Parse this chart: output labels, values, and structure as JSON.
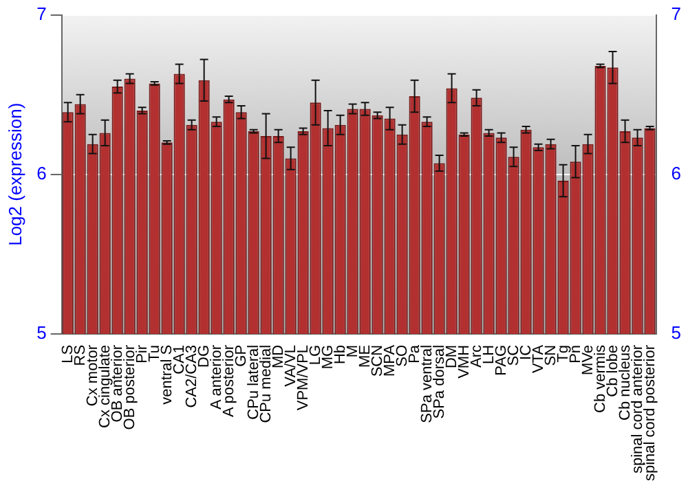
{
  "chart_data": {
    "type": "bar",
    "ylabel": "Log2 (expression)",
    "categories": [
      "LS",
      "RS",
      "Cx motor",
      "Cx cingulate",
      "OB anterior",
      "OB posterior",
      "Pir",
      "Tu",
      "ventral S",
      "CA1",
      "CA2/CA3",
      "DG",
      "A anterior",
      "A posterior",
      "GP",
      "CPu lateral",
      "CPu medial",
      "MD",
      "VA/VL",
      "VPM/VPL",
      "LG",
      "MG",
      "Hb",
      "M",
      "ME",
      "SCN",
      "MPA",
      "SO",
      "Pa",
      "SPa ventral",
      "SPa dorsal",
      "DM",
      "VMH",
      "Arc",
      "LH",
      "PAG",
      "SC",
      "IC",
      "VTA",
      "SN",
      "Tg",
      "Pn",
      "MVe",
      "Cb vermis",
      "Cb lobe",
      "Cb nucleus",
      "spinal cord anterior",
      "spinal cord posterior"
    ],
    "values": [
      6.39,
      6.44,
      6.19,
      6.26,
      6.55,
      6.6,
      6.4,
      6.57,
      6.2,
      6.63,
      6.31,
      6.59,
      6.33,
      6.47,
      6.39,
      6.27,
      6.24,
      6.24,
      6.1,
      6.27,
      6.45,
      6.29,
      6.31,
      6.41,
      6.41,
      6.37,
      6.35,
      6.25,
      6.49,
      6.33,
      6.07,
      6.54,
      6.25,
      6.48,
      6.26,
      6.23,
      6.11,
      6.28,
      6.17,
      6.19,
      5.96,
      6.08,
      6.19,
      6.68,
      6.67,
      6.27,
      6.23,
      6.29
    ],
    "errors": [
      0.06,
      0.06,
      0.06,
      0.08,
      0.04,
      0.03,
      0.02,
      0.01,
      0.01,
      0.06,
      0.03,
      0.13,
      0.03,
      0.02,
      0.04,
      0.01,
      0.14,
      0.04,
      0.07,
      0.02,
      0.14,
      0.11,
      0.06,
      0.03,
      0.04,
      0.02,
      0.07,
      0.06,
      0.1,
      0.03,
      0.05,
      0.09,
      0.01,
      0.05,
      0.02,
      0.03,
      0.06,
      0.02,
      0.02,
      0.03,
      0.1,
      0.1,
      0.06,
      0.01,
      0.1,
      0.07,
      0.05,
      0.01
    ],
    "color": "#b33030",
    "ylim": [
      5,
      7
    ],
    "yticks": [
      5,
      6,
      7
    ],
    "y2lim": [
      5,
      7
    ],
    "y2ticks": [
      5,
      6,
      7
    ],
    "grid": "y"
  }
}
